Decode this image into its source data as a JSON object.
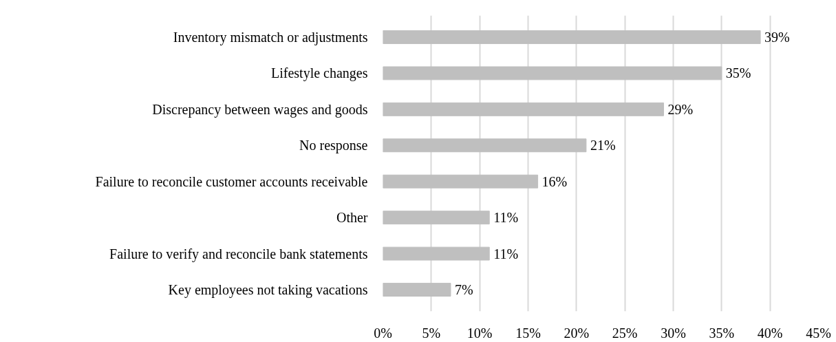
{
  "chart_data": {
    "type": "bar",
    "orientation": "horizontal",
    "categories": [
      "Inventory mismatch or adjustments",
      "Lifestyle changes",
      "Discrepancy between wages and goods",
      "No response",
      "Failure to reconcile customer accounts receivable",
      "Other",
      "Failure to verify and reconcile bank statements",
      "Key employees not taking vacations"
    ],
    "values": [
      39,
      35,
      29,
      21,
      16,
      11,
      11,
      7
    ],
    "value_labels": [
      "39%",
      "35%",
      "29%",
      "21%",
      "16%",
      "11%",
      "11%",
      "7%"
    ],
    "color": "#bfbfbf",
    "xlim": [
      0,
      45
    ],
    "xticks": [
      {
        "value": 0,
        "label": "0%"
      },
      {
        "value": 5,
        "label": "5%"
      },
      {
        "value": 10,
        "label": "10%"
      },
      {
        "value": 15,
        "label": "15%"
      },
      {
        "value": 20,
        "label": "20%"
      },
      {
        "value": 25,
        "label": "25%"
      },
      {
        "value": 30,
        "label": "30%"
      },
      {
        "value": 35,
        "label": "35%"
      },
      {
        "value": 40,
        "label": "40%"
      },
      {
        "value": 45,
        "label": "45%"
      }
    ],
    "grid": "x"
  }
}
